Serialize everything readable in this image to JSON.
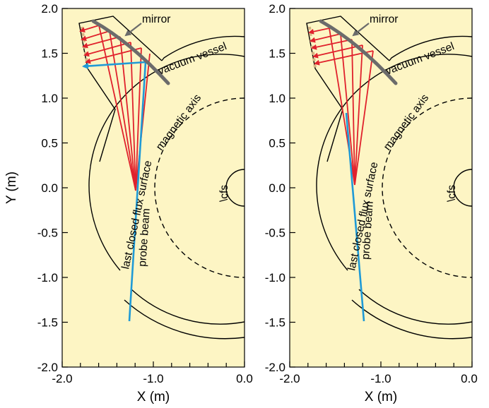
{
  "colors": {
    "panel_fill": "#fdf5c4",
    "ray_red": "#e0212c",
    "probe_blue": "#1f9ad6",
    "mirror_gray": "#6b6b6b",
    "line_black": "#000000",
    "detector_tan": "#d4b483"
  },
  "axes": {
    "y_label": "Y (m)",
    "x_label": "X (m)",
    "y_ticks": [
      "2.0",
      "1.5",
      "1.0",
      "0.5",
      "0.0",
      "-0.5",
      "-1.0",
      "-1.5",
      "-2.0"
    ],
    "x_ticks": [
      "-2.0",
      "-1.0",
      "0.0"
    ]
  },
  "annotations": {
    "mirror": "mirror",
    "vacuum_vessel": "vacuum vessel",
    "magnetic_axis": "magnetic axis",
    "lcfs_full": "last closed flux surface",
    "probe_beam": "probe beam",
    "lcfs_short": "\\cfs"
  },
  "panels": [
    {
      "id": "left",
      "probe_beam_start_y": 1.4,
      "probe_beam_end_y": -1.5
    },
    {
      "id": "right",
      "probe_beam_start_y": 0.8,
      "probe_beam_end_y": -1.5
    }
  ]
}
